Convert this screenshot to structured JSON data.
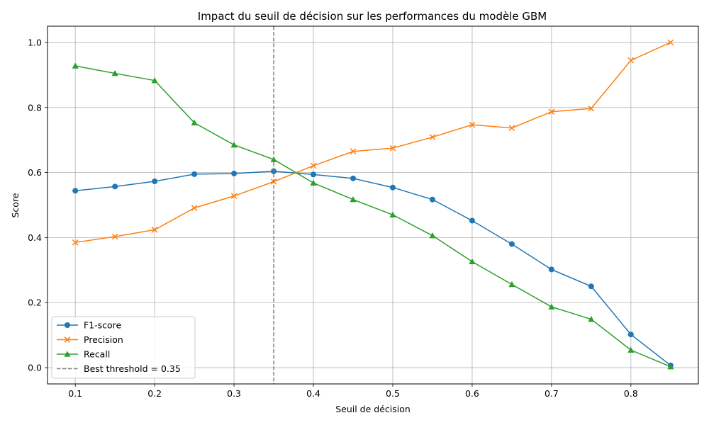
{
  "chart_data": {
    "type": "line",
    "title": "Impact du seuil de décision sur les performances du modèle GBM",
    "xlabel": "Seuil de décision",
    "ylabel": "Score",
    "xlim": [
      0.065,
      0.885
    ],
    "ylim": [
      -0.05,
      1.05
    ],
    "xticks": [
      0.1,
      0.2,
      0.3,
      0.4,
      0.5,
      0.6,
      0.7,
      0.8
    ],
    "yticks": [
      0.0,
      0.2,
      0.4,
      0.6,
      0.8,
      1.0
    ],
    "grid": true,
    "legend_position": "lower-left",
    "x": [
      0.1,
      0.15,
      0.2,
      0.25,
      0.3,
      0.35,
      0.4,
      0.45,
      0.5,
      0.55,
      0.6,
      0.65,
      0.7,
      0.75,
      0.8,
      0.85
    ],
    "series": [
      {
        "name": "F1-score",
        "color": "#1f77b4",
        "marker": "circle",
        "values": [
          0.544,
          0.557,
          0.573,
          0.595,
          0.597,
          0.604,
          0.594,
          0.582,
          0.554,
          0.517,
          0.452,
          0.38,
          0.302,
          0.25,
          0.102,
          0.007
        ]
      },
      {
        "name": "Precision",
        "color": "#ff7f0e",
        "marker": "x",
        "values": [
          0.385,
          0.403,
          0.424,
          0.491,
          0.528,
          0.572,
          0.621,
          0.665,
          0.675,
          0.709,
          0.747,
          0.737,
          0.787,
          0.797,
          0.945,
          1.0
        ]
      },
      {
        "name": "Recall",
        "color": "#2ca02c",
        "marker": "triangle",
        "values": [
          0.928,
          0.905,
          0.883,
          0.753,
          0.685,
          0.64,
          0.568,
          0.517,
          0.47,
          0.406,
          0.326,
          0.256,
          0.187,
          0.149,
          0.054,
          0.003
        ]
      }
    ],
    "reference_line": {
      "name": "Best threshold = 0.35",
      "x": 0.35,
      "color": "#808080",
      "style": "dashed"
    }
  }
}
